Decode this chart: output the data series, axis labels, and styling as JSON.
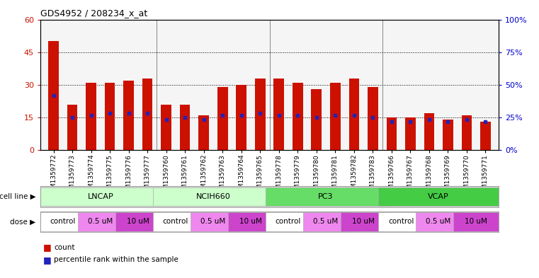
{
  "title": "GDS4952 / 208234_x_at",
  "samples": [
    "GSM1359772",
    "GSM1359773",
    "GSM1359774",
    "GSM1359775",
    "GSM1359776",
    "GSM1359777",
    "GSM1359760",
    "GSM1359761",
    "GSM1359762",
    "GSM1359763",
    "GSM1359764",
    "GSM1359765",
    "GSM1359778",
    "GSM1359779",
    "GSM1359780",
    "GSM1359781",
    "GSM1359782",
    "GSM1359783",
    "GSM1359766",
    "GSM1359767",
    "GSM1359768",
    "GSM1359769",
    "GSM1359770",
    "GSM1359771"
  ],
  "bar_heights": [
    50,
    21,
    31,
    31,
    32,
    33,
    21,
    21,
    16,
    29,
    30,
    33,
    33,
    31,
    28,
    31,
    33,
    29,
    15,
    15,
    17,
    14,
    16,
    13
  ],
  "blue_dot_y": [
    25,
    15,
    16,
    17,
    17,
    17,
    14,
    15,
    14,
    16,
    16,
    17,
    16,
    16,
    15,
    16,
    16,
    15,
    13,
    13,
    14,
    13,
    14,
    13
  ],
  "cell_lines": [
    {
      "label": "LNCAP",
      "start": 0,
      "end": 6,
      "color": "#ccffcc"
    },
    {
      "label": "NCIH660",
      "start": 6,
      "end": 12,
      "color": "#ccffcc"
    },
    {
      "label": "PC3",
      "start": 12,
      "end": 18,
      "color": "#66dd66"
    },
    {
      "label": "VCAP",
      "start": 18,
      "end": 24,
      "color": "#44cc44"
    }
  ],
  "doses": [
    {
      "label": "control",
      "start": 0,
      "end": 2,
      "color": "#ffffff"
    },
    {
      "label": "0.5 uM",
      "start": 2,
      "end": 4,
      "color": "#ee88ee"
    },
    {
      "label": "10 uM",
      "start": 4,
      "end": 6,
      "color": "#cc44cc"
    },
    {
      "label": "control",
      "start": 6,
      "end": 8,
      "color": "#ffffff"
    },
    {
      "label": "0.5 uM",
      "start": 8,
      "end": 10,
      "color": "#ee88ee"
    },
    {
      "label": "10 uM",
      "start": 10,
      "end": 12,
      "color": "#cc44cc"
    },
    {
      "label": "control",
      "start": 12,
      "end": 14,
      "color": "#ffffff"
    },
    {
      "label": "0.5 uM",
      "start": 14,
      "end": 16,
      "color": "#ee88ee"
    },
    {
      "label": "10 uM",
      "start": 16,
      "end": 18,
      "color": "#cc44cc"
    },
    {
      "label": "control",
      "start": 18,
      "end": 20,
      "color": "#ffffff"
    },
    {
      "label": "0.5 uM",
      "start": 20,
      "end": 22,
      "color": "#ee88ee"
    },
    {
      "label": "10 uM",
      "start": 22,
      "end": 24,
      "color": "#cc44cc"
    }
  ],
  "ylim_left": [
    0,
    60
  ],
  "ylim_right": [
    0,
    100
  ],
  "yticks_left": [
    0,
    15,
    30,
    45,
    60
  ],
  "yticks_right": [
    0,
    25,
    50,
    75,
    100
  ],
  "bar_color": "#cc1100",
  "dot_color": "#2222bb",
  "plot_bg": "#f5f5f5",
  "left_tick_color": "#cc1100",
  "right_tick_color": "#0000cc",
  "cell_line_bg": "#d8d8d8",
  "dose_bg": "#d8d8d8"
}
